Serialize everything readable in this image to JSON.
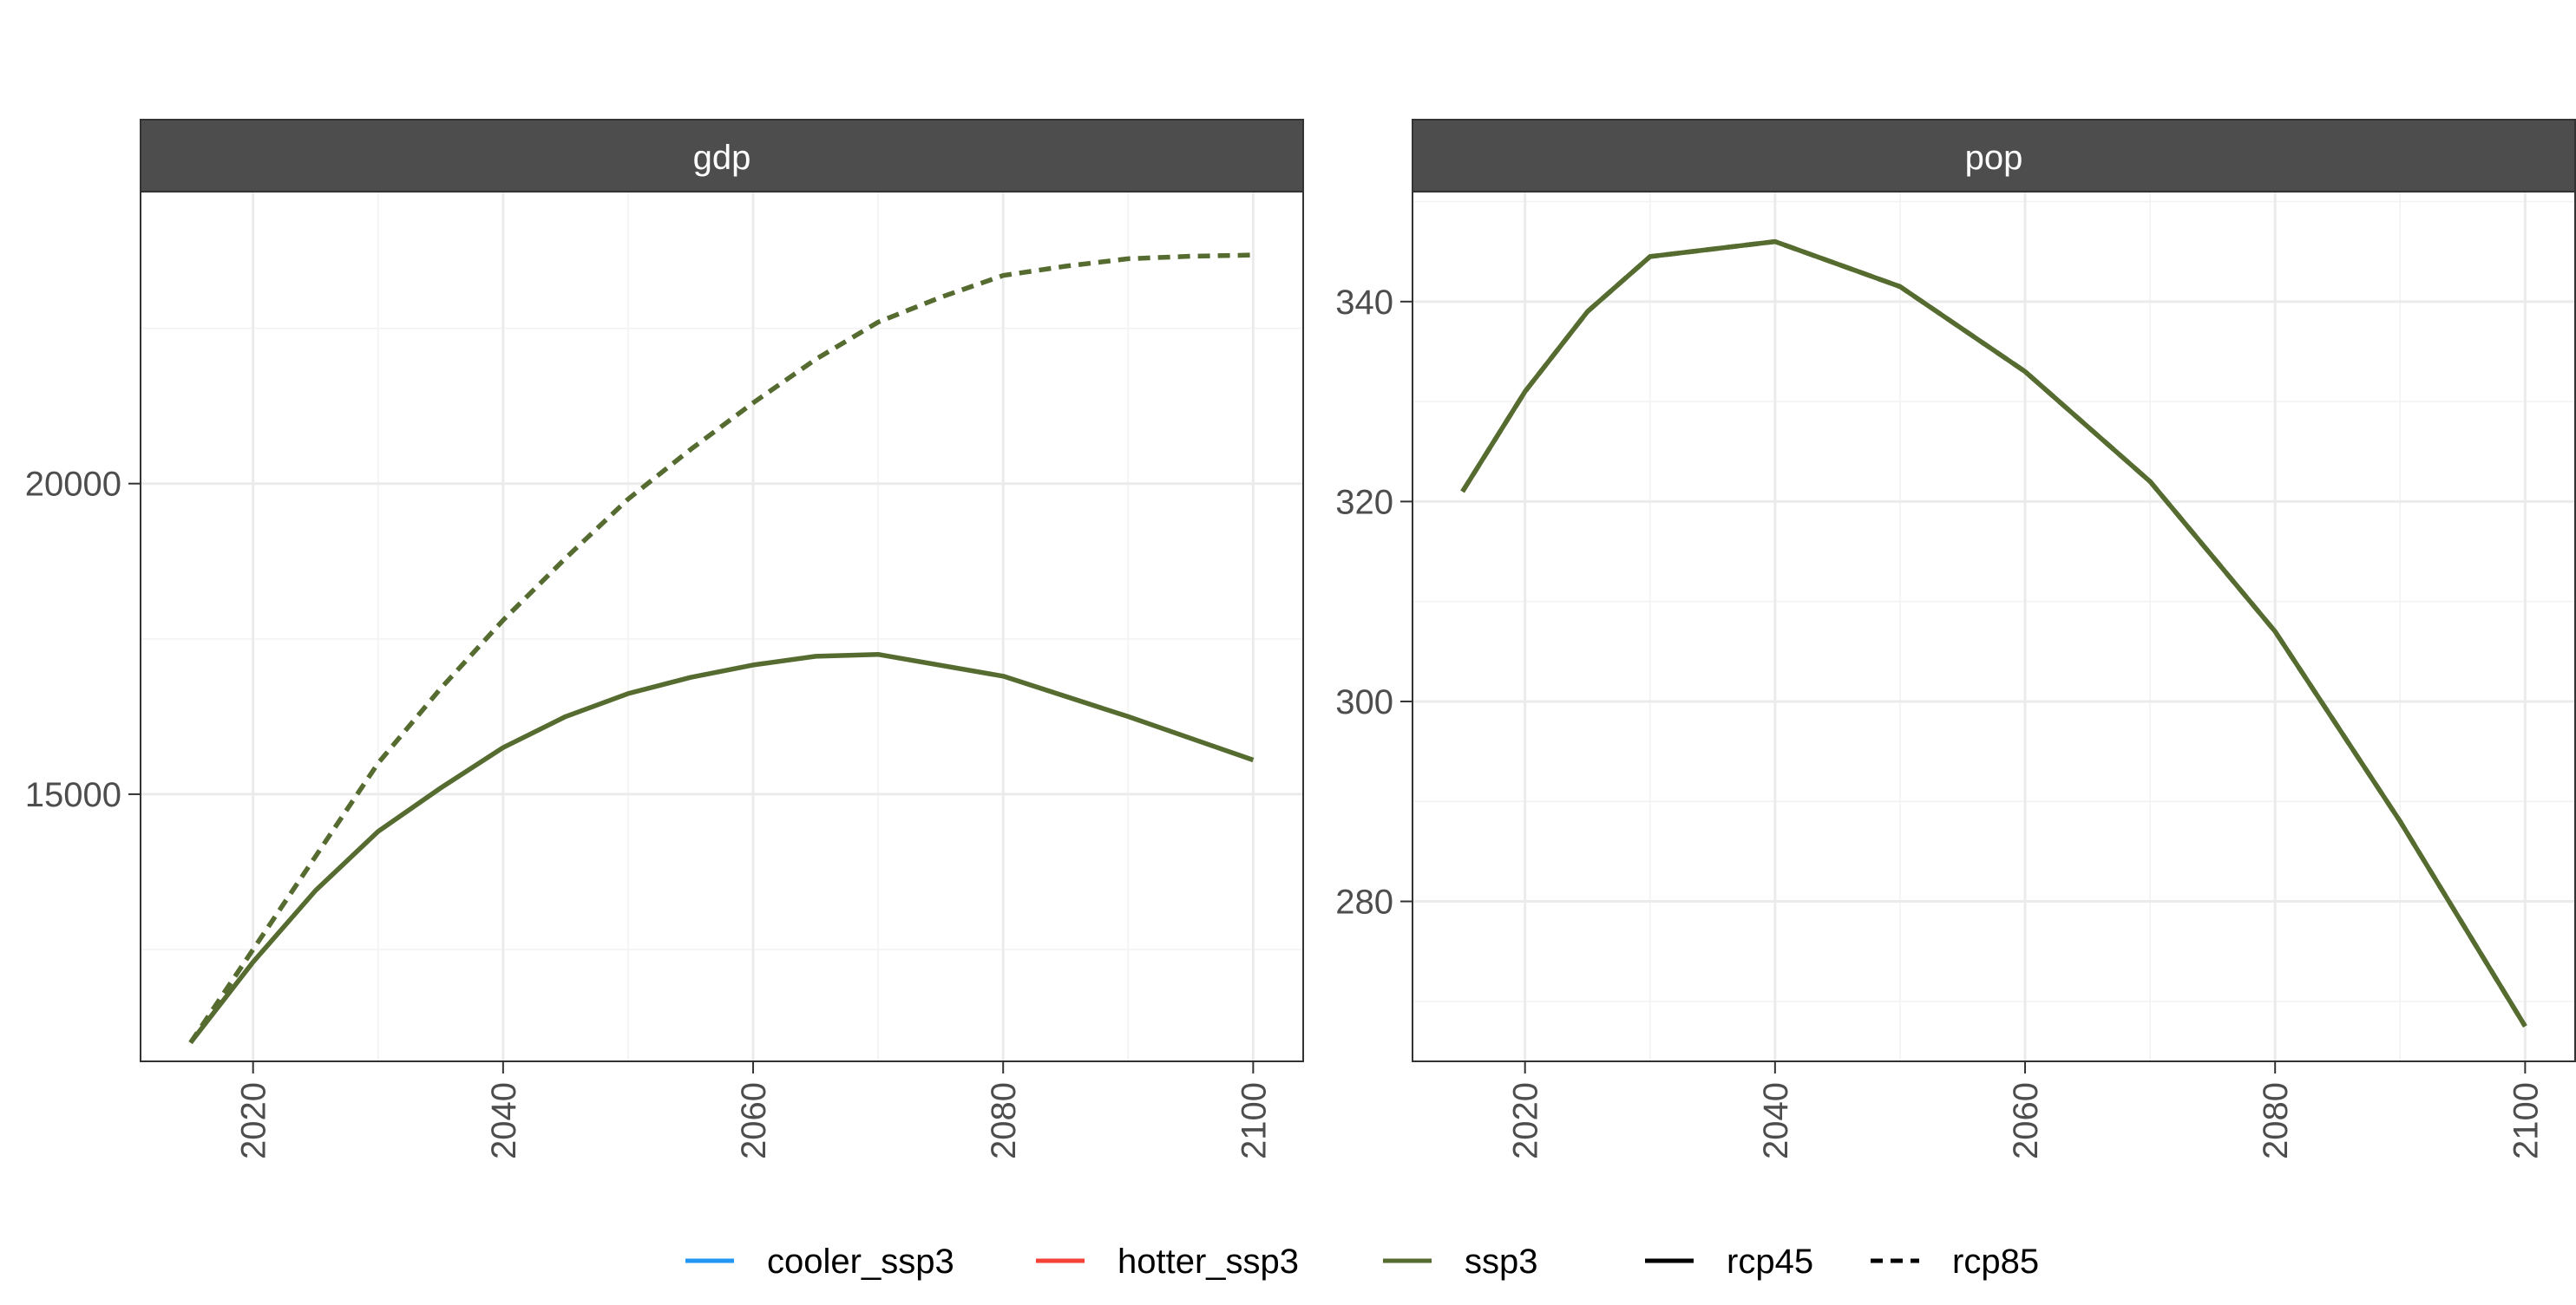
{
  "chart_data": [
    {
      "type": "line",
      "facet_label": "gdp",
      "title": "",
      "xlabel": "",
      "ylabel": "",
      "xlim": [
        2011,
        2104
      ],
      "ylim": [
        10700,
        24700
      ],
      "x_ticks": [
        2020,
        2040,
        2060,
        2080,
        2100
      ],
      "y_ticks": [
        15000,
        20000
      ],
      "y_minor_ticks": [
        12500,
        17500,
        22500
      ],
      "x_minor_ticks": [
        2030,
        2050,
        2070,
        2090
      ],
      "grid": true,
      "series": [
        {
          "name": "ssp3 rcp85",
          "color": "#556b2f",
          "linetype": "dashed",
          "x": [
            2015,
            2020,
            2025,
            2030,
            2035,
            2040,
            2045,
            2050,
            2055,
            2060,
            2065,
            2070,
            2075,
            2080,
            2085,
            2090,
            2095,
            2100
          ],
          "y": [
            11000,
            12500,
            14000,
            15500,
            16700,
            17800,
            18800,
            19750,
            20550,
            21300,
            22000,
            22600,
            23000,
            23350,
            23500,
            23620,
            23660,
            23680
          ]
        },
        {
          "name": "ssp3 rcp45",
          "color": "#556b2f",
          "linetype": "solid",
          "x": [
            2015,
            2020,
            2025,
            2030,
            2035,
            2040,
            2045,
            2050,
            2055,
            2060,
            2065,
            2070,
            2080,
            2090,
            2100
          ],
          "y": [
            11000,
            12300,
            13450,
            14400,
            15100,
            15750,
            16250,
            16620,
            16880,
            17080,
            17220,
            17250,
            16900,
            16250,
            15550
          ]
        }
      ]
    },
    {
      "type": "line",
      "facet_label": "pop",
      "title": "",
      "xlabel": "",
      "ylabel": "",
      "xlim": [
        2011,
        2104
      ],
      "ylim": [
        264,
        351
      ],
      "x_ticks": [
        2020,
        2040,
        2060,
        2080,
        2100
      ],
      "y_ticks": [
        280,
        300,
        320,
        340
      ],
      "y_minor_ticks": [
        270,
        290,
        310,
        330,
        350
      ],
      "x_minor_ticks": [
        2030,
        2050,
        2070,
        2090
      ],
      "grid": true,
      "series": [
        {
          "name": "ssp3 rcp45",
          "color": "#556b2f",
          "linetype": "solid",
          "x": [
            2015,
            2020,
            2025,
            2030,
            2040,
            2050,
            2060,
            2070,
            2080,
            2090,
            2100
          ],
          "y": [
            321,
            331,
            339,
            344.5,
            346,
            341.5,
            333,
            322,
            307,
            288,
            267.5
          ]
        },
        {
          "name": "ssp3 rcp85",
          "color": "#556b2f",
          "linetype": "dashed",
          "x": [
            2015,
            2020,
            2025,
            2030,
            2040,
            2050,
            2060,
            2070,
            2080,
            2090,
            2100
          ],
          "y": [
            321,
            331,
            339,
            344.5,
            346,
            341.5,
            333,
            322,
            307,
            288,
            267.5
          ]
        }
      ]
    }
  ],
  "legend": {
    "placement": "bottom",
    "color_entries": [
      {
        "label": "cooler_ssp3",
        "color": "#2196f3"
      },
      {
        "label": "hotter_ssp3",
        "color": "#f44336"
      },
      {
        "label": "ssp3",
        "color": "#556b2f"
      }
    ],
    "linetype_entries": [
      {
        "label": "rcp45",
        "linetype": "solid"
      },
      {
        "label": "rcp85",
        "linetype": "dashed"
      }
    ]
  }
}
